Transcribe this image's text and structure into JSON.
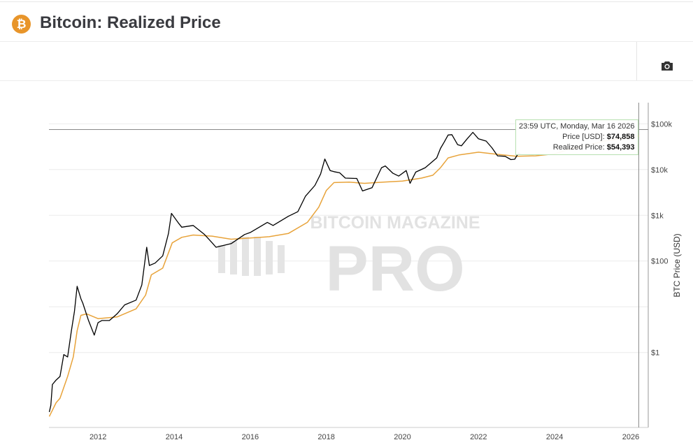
{
  "header": {
    "title": "Bitcoin: Realized Price",
    "icon": "bitcoin-icon",
    "icon_color": "#e8952a"
  },
  "toolbar": {
    "camera_icon": "camera-icon"
  },
  "tooltip": {
    "time": "23:59 UTC, Monday, Mar 16 2026",
    "price_label": "Price [USD]:",
    "price_value": "$74,858",
    "realized_label": "Realized Price:",
    "realized_value": "$54,393"
  },
  "watermark": {
    "line1": "BITCOIN MAGAZINE",
    "line2": "PRO"
  },
  "chart_data": {
    "type": "line",
    "title": "Bitcoin: Realized Price",
    "xlabel": "",
    "ylabel": "BTC Price (USD)",
    "yscale": "log",
    "xlim": [
      2010.71,
      2026.46
    ],
    "ylim": [
      0.023,
      290000
    ],
    "x_ticks": [
      2012,
      2014,
      2016,
      2018,
      2020,
      2022,
      2024,
      2026
    ],
    "x_tick_labels": [
      "2012",
      "2014",
      "2016",
      "2018",
      "2020",
      "2022",
      "2024",
      "2026"
    ],
    "y_ticks": [
      1,
      100,
      1000,
      10000,
      100000
    ],
    "y_tick_labels": [
      "$1",
      "$100",
      "$1k",
      "$10k",
      "$100k"
    ],
    "y_grid": [
      1,
      10,
      100,
      1000,
      10000,
      100000
    ],
    "crosshair": {
      "x": 2026.21,
      "y": 74858
    },
    "series": [
      {
        "name": "Price [USD]",
        "color": "#000000",
        "points": [
          [
            2010.72,
            0.05
          ],
          [
            2010.76,
            0.07
          ],
          [
            2010.8,
            0.2
          ],
          [
            2010.9,
            0.25
          ],
          [
            2011.0,
            0.3
          ],
          [
            2011.1,
            0.9
          ],
          [
            2011.2,
            0.8
          ],
          [
            2011.3,
            3
          ],
          [
            2011.38,
            8
          ],
          [
            2011.45,
            28
          ],
          [
            2011.55,
            15
          ],
          [
            2011.6,
            12
          ],
          [
            2011.75,
            5
          ],
          [
            2011.9,
            2.4
          ],
          [
            2012.0,
            4.5
          ],
          [
            2012.1,
            5
          ],
          [
            2012.3,
            5
          ],
          [
            2012.5,
            7
          ],
          [
            2012.7,
            11
          ],
          [
            2013.0,
            14
          ],
          [
            2013.15,
            30
          ],
          [
            2013.28,
            200
          ],
          [
            2013.35,
            80
          ],
          [
            2013.5,
            90
          ],
          [
            2013.7,
            130
          ],
          [
            2013.85,
            400
          ],
          [
            2013.93,
            1100
          ],
          [
            2014.1,
            700
          ],
          [
            2014.2,
            550
          ],
          [
            2014.5,
            600
          ],
          [
            2014.8,
            380
          ],
          [
            2015.0,
            250
          ],
          [
            2015.1,
            200
          ],
          [
            2015.5,
            240
          ],
          [
            2015.85,
            380
          ],
          [
            2016.0,
            420
          ],
          [
            2016.45,
            700
          ],
          [
            2016.6,
            600
          ],
          [
            2017.0,
            950
          ],
          [
            2017.25,
            1200
          ],
          [
            2017.45,
            2600
          ],
          [
            2017.7,
            4500
          ],
          [
            2017.85,
            8000
          ],
          [
            2017.96,
            17000
          ],
          [
            2018.1,
            9500
          ],
          [
            2018.2,
            9000
          ],
          [
            2018.35,
            8500
          ],
          [
            2018.5,
            6500
          ],
          [
            2018.8,
            6400
          ],
          [
            2018.95,
            3400
          ],
          [
            2019.2,
            4000
          ],
          [
            2019.45,
            11000
          ],
          [
            2019.55,
            12000
          ],
          [
            2019.75,
            8300
          ],
          [
            2019.9,
            7200
          ],
          [
            2020.1,
            9500
          ],
          [
            2020.2,
            5000
          ],
          [
            2020.35,
            8800
          ],
          [
            2020.6,
            11000
          ],
          [
            2020.9,
            18000
          ],
          [
            2021.0,
            29000
          ],
          [
            2021.1,
            40000
          ],
          [
            2021.2,
            57000
          ],
          [
            2021.3,
            58000
          ],
          [
            2021.45,
            35000
          ],
          [
            2021.55,
            33000
          ],
          [
            2021.7,
            47000
          ],
          [
            2021.85,
            65000
          ],
          [
            2022.0,
            47000
          ],
          [
            2022.2,
            42000
          ],
          [
            2022.35,
            30000
          ],
          [
            2022.5,
            20000
          ],
          [
            2022.7,
            19500
          ],
          [
            2022.85,
            16500
          ],
          [
            2022.95,
            16800
          ],
          [
            2023.05,
            23000
          ],
          [
            2023.1,
            22000
          ]
        ]
      },
      {
        "name": "Realized Price",
        "color": "#e8a33a",
        "points": [
          [
            2010.72,
            0.04
          ],
          [
            2010.9,
            0.08
          ],
          [
            2011.0,
            0.1
          ],
          [
            2011.2,
            0.3
          ],
          [
            2011.35,
            0.8
          ],
          [
            2011.45,
            3
          ],
          [
            2011.55,
            6.5
          ],
          [
            2011.7,
            7
          ],
          [
            2012.0,
            5.5
          ],
          [
            2012.5,
            6
          ],
          [
            2013.0,
            9
          ],
          [
            2013.25,
            18
          ],
          [
            2013.4,
            50
          ],
          [
            2013.7,
            70
          ],
          [
            2013.95,
            250
          ],
          [
            2014.2,
            330
          ],
          [
            2014.5,
            370
          ],
          [
            2015.0,
            350
          ],
          [
            2015.5,
            300
          ],
          [
            2016.0,
            320
          ],
          [
            2016.5,
            340
          ],
          [
            2017.0,
            400
          ],
          [
            2017.5,
            700
          ],
          [
            2017.8,
            1500
          ],
          [
            2018.0,
            3500
          ],
          [
            2018.2,
            5200
          ],
          [
            2018.6,
            5300
          ],
          [
            2019.0,
            5000
          ],
          [
            2019.5,
            5300
          ],
          [
            2020.0,
            5600
          ],
          [
            2020.5,
            6500
          ],
          [
            2020.8,
            7500
          ],
          [
            2021.0,
            11000
          ],
          [
            2021.2,
            18000
          ],
          [
            2021.5,
            21000
          ],
          [
            2022.0,
            24000
          ],
          [
            2022.5,
            21500
          ],
          [
            2023.0,
            19500
          ],
          [
            2023.5,
            20000
          ],
          [
            2024.0,
            22000
          ],
          [
            2024.4,
            28000
          ],
          [
            2024.8,
            33000
          ],
          [
            2025.3,
            42000
          ],
          [
            2026.21,
            54393
          ]
        ]
      }
    ]
  }
}
